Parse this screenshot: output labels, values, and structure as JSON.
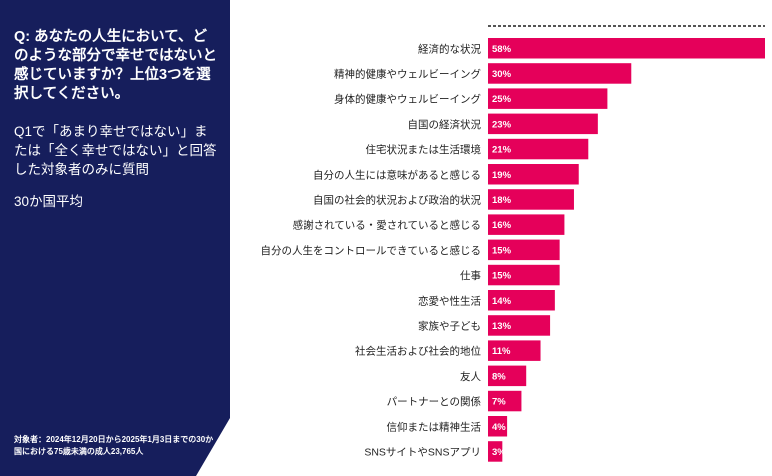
{
  "panel": {
    "question": "Q: あなたの人生において、どのような部分で幸せではないと感じていますか？上位3つを選択してください。",
    "filter": "Q1で「あまり幸せではない」または「全く幸せではない」と回答した対象者のみに質問",
    "scope": "30か国平均",
    "footnote": "対象者：2024年12月20日から2025年1月3日までの30か国における75歳未満の成人23,765人"
  },
  "colors": {
    "panel": "#161e5c",
    "bar": "#e5005a",
    "text": "#222222"
  },
  "chart_data": {
    "type": "bar",
    "orientation": "horizontal",
    "categories": [
      "経済的な状況",
      "精神的健康やウェルビーイング",
      "身体的健康やウェルビーイング",
      "自国の経済状況",
      "住宅状況または生活環境",
      "自分の人生には意味があると感じる",
      "自国の社会的状況および政治的状況",
      "感謝されている・愛されていると感じる",
      "自分の人生をコントロールできていると感じる",
      "仕事",
      "恋愛や性生活",
      "家族や子ども",
      "社会生活および社会的地位",
      "友人",
      "パートナーとの関係",
      "信仰または精神生活",
      "SNSサイトやSNSアプリ"
    ],
    "values": [
      58,
      30,
      25,
      23,
      21,
      19,
      18,
      16,
      15,
      15,
      14,
      13,
      11,
      8,
      7,
      4,
      3
    ],
    "value_labels": [
      "58%",
      "30%",
      "25%",
      "23%",
      "21%",
      "19%",
      "18%",
      "16%",
      "15%",
      "15%",
      "14%",
      "13%",
      "11%",
      "8%",
      "7%",
      "4%",
      "3%"
    ],
    "xlim": [
      0,
      58
    ]
  }
}
